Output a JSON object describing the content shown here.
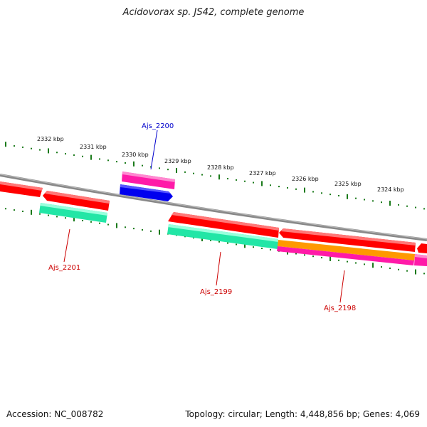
{
  "title": "Acidovorax sp. JS42, complete genome",
  "footer": {
    "accession": "Accession: NC_008782",
    "summary": "Topology: circular; Length: 4,448,856 bp; Genes: 4,069"
  },
  "colors": {
    "backbone": "#888888",
    "ticks": "#1a7a1a",
    "cds_forward": "#ff0000",
    "cds_reverse": "#ff0000",
    "gene_green": "#22e6a6",
    "gene_pink": "#ff1aa8",
    "gene_blue": "#0000ee",
    "gene_orange": "#ff9900",
    "label_red": "#cc0000",
    "label_blue": "#0000cc"
  },
  "scale_labels": [
    "2332 kbp",
    "2331 kbp",
    "2330 kbp",
    "2329 kbp",
    "2328 kbp",
    "2327 kbp",
    "2326 kbp",
    "2325 kbp",
    "2324 kbp"
  ],
  "gene_labels": [
    "Ajs_2200",
    "Ajs_2201",
    "Ajs_2199",
    "Ajs_2198"
  ]
}
